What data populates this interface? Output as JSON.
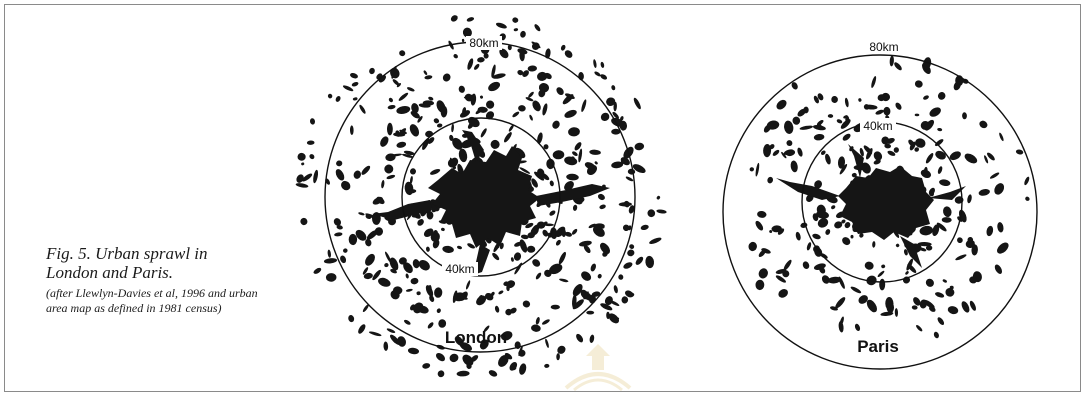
{
  "caption": {
    "title": "Fig. 5. Urban sprawl in London and Paris.",
    "note": "(after Llewlyn-Davies et al, 1996 and urban area map as defined in 1981 census)"
  },
  "london": {
    "name": "London",
    "outer_ring_label": "80km",
    "inner_ring_label": "40km"
  },
  "paris": {
    "name": "Paris",
    "outer_ring_label": "80km",
    "inner_ring_label": "40km"
  },
  "colors": {
    "ink": "#111111",
    "frame": "#8a8a8a",
    "watermark": "#c9a227"
  }
}
